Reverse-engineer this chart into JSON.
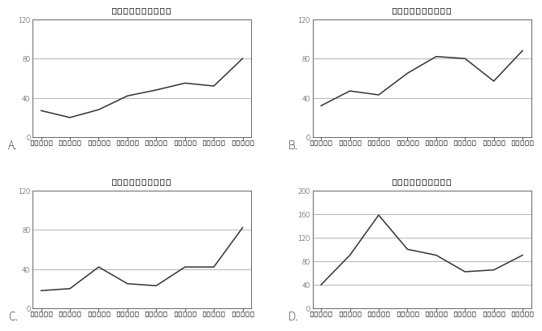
{
  "charts": [
    {
      "label": "A.",
      "title": "外资净收入（亿美元）",
      "years": [
        "2004年",
        "2005年",
        "2006年",
        "2007年",
        "2008年",
        "2009年",
        "2010年",
        "2011年"
      ],
      "values": [
        27,
        20,
        28,
        42,
        48,
        55,
        52,
        80
      ],
      "ylim": [
        0,
        120
      ],
      "yticks": [
        0,
        40,
        80,
        120
      ],
      "hlines": [
        40,
        80,
        120
      ]
    },
    {
      "label": "B.",
      "title": "外资净收入（亿美元）",
      "years": [
        "2004年",
        "2005年",
        "2006年",
        "2007年",
        "2008年",
        "2009年",
        "2010年",
        "2011年"
      ],
      "values": [
        32,
        47,
        43,
        65,
        82,
        80,
        57,
        88
      ],
      "ylim": [
        0,
        120
      ],
      "yticks": [
        0,
        40,
        80,
        120
      ],
      "hlines": [
        40,
        80,
        120
      ]
    },
    {
      "label": "C.",
      "title": "外资净收入（亿美元）",
      "years": [
        "2004年",
        "2005年",
        "2006年",
        "2007年",
        "2008年",
        "2009年",
        "2010年",
        "2011年"
      ],
      "values": [
        18,
        20,
        42,
        25,
        23,
        42,
        42,
        82
      ],
      "ylim": [
        0,
        120
      ],
      "yticks": [
        0,
        40,
        80,
        120
      ],
      "hlines": [
        40,
        80,
        120
      ]
    },
    {
      "label": "D.",
      "title": "外资净收入（亿美元）",
      "years": [
        "2004年",
        "2005年",
        "2006年",
        "2007年",
        "2008年",
        "2009年",
        "2010年",
        "2011年"
      ],
      "values": [
        40,
        90,
        158,
        100,
        90,
        62,
        65,
        90
      ],
      "ylim": [
        0,
        200
      ],
      "yticks": [
        0,
        40,
        80,
        120,
        160,
        200
      ],
      "hlines": [
        40,
        80,
        120,
        160,
        200
      ]
    }
  ],
  "line_color": "#333333",
  "bg_color": "#ffffff",
  "title_fontsize": 9,
  "tick_fontsize": 7,
  "label_fontsize": 10,
  "grid_color": "#aaaaaa",
  "spine_color": "#666666"
}
